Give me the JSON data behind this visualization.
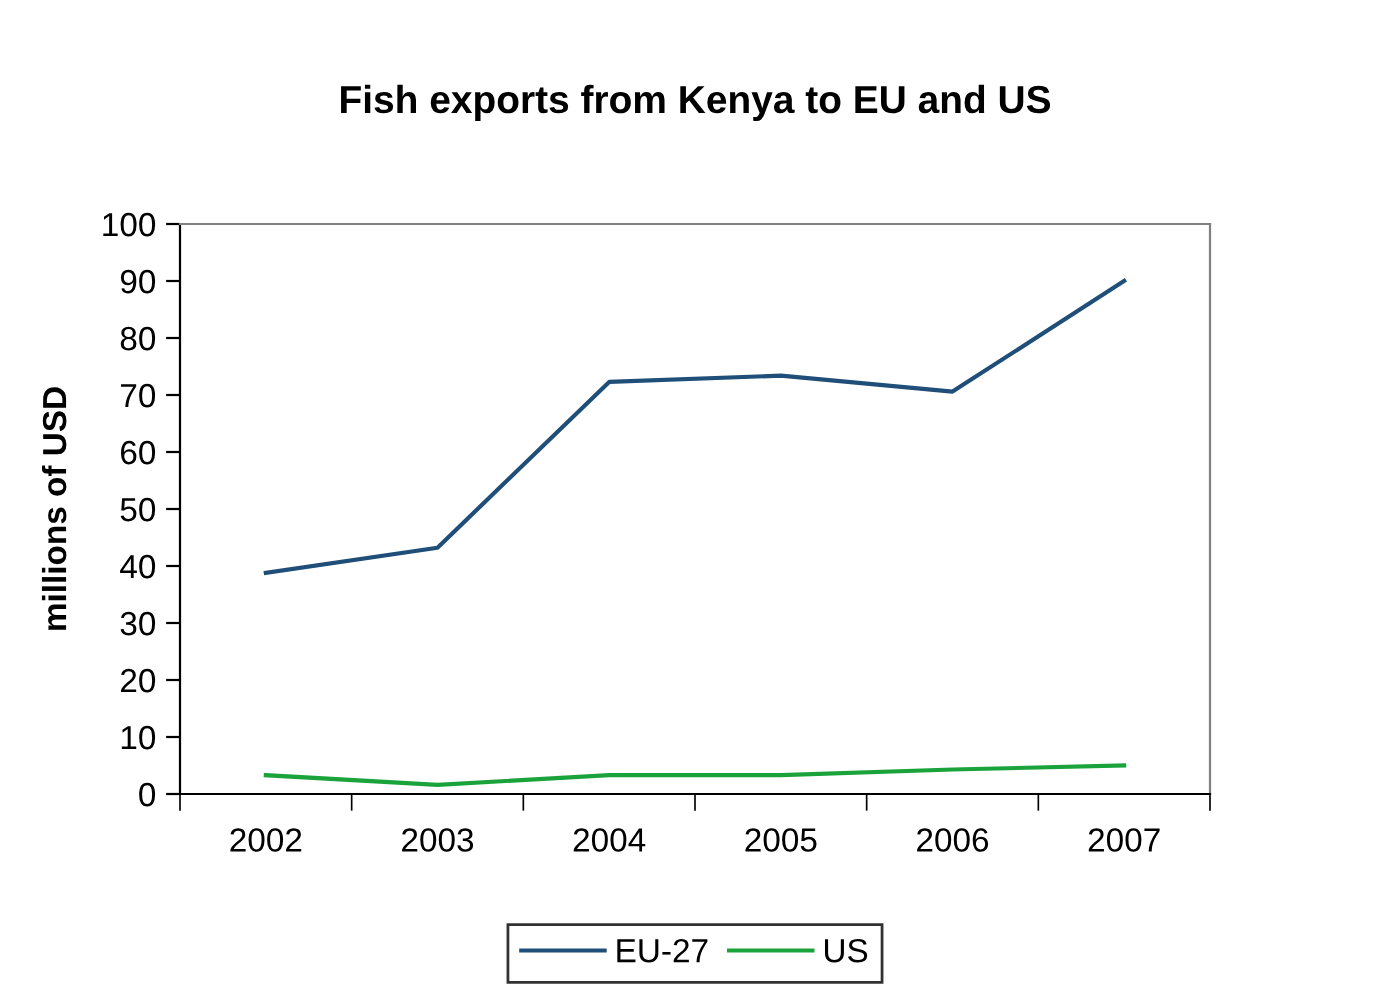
{
  "chart_data": {
    "type": "line",
    "title": "Fish exports from Kenya to EU and US",
    "ylabel": "millions of USD",
    "categories": [
      "2002",
      "2003",
      "2004",
      "2005",
      "2006",
      "2007"
    ],
    "series": [
      {
        "name": "EU-27",
        "color": "#1f4e79",
        "values": [
          38.8,
          43.2,
          72.3,
          73.4,
          70.6,
          90.0
        ]
      },
      {
        "name": "US",
        "color": "#1aa33b",
        "values": [
          3.3,
          1.6,
          3.3,
          3.3,
          4.3,
          5.0
        ]
      }
    ],
    "ylim": [
      0,
      100
    ],
    "yticks": [
      0,
      10,
      20,
      30,
      40,
      50,
      60,
      70,
      80,
      90,
      100
    ],
    "grid": false,
    "legend": "bottom"
  }
}
